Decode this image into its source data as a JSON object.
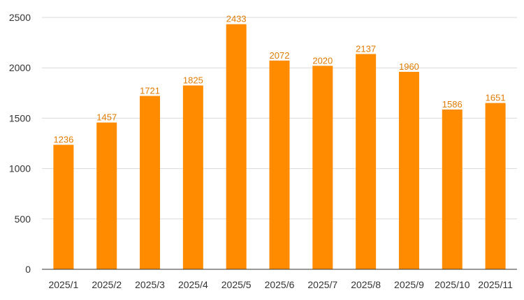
{
  "chart_data": {
    "type": "bar",
    "categories": [
      "2025/1",
      "2025/2",
      "2025/3",
      "2025/4",
      "2025/5",
      "2025/6",
      "2025/7",
      "2025/8",
      "2025/9",
      "2025/10",
      "2025/11"
    ],
    "values": [
      1236,
      1457,
      1721,
      1825,
      2433,
      2072,
      2020,
      2137,
      1960,
      1586,
      1651
    ],
    "title": "",
    "xlabel": "",
    "ylabel": "",
    "ylim": [
      0,
      2500
    ],
    "yticks": [
      0,
      500,
      1000,
      1500,
      2000,
      2500
    ],
    "grid": true,
    "legend": "none",
    "colors": {
      "bar": "#FF8C00",
      "data_label": "#E07B00",
      "grid": "#D9D9D9",
      "axis": "#333333"
    }
  }
}
